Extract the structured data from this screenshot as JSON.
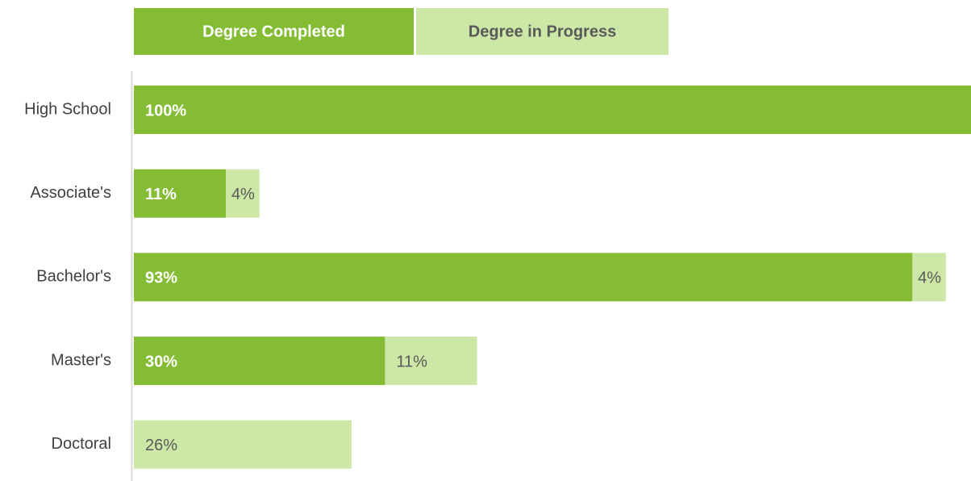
{
  "chart_data": {
    "type": "stacked-bar-horizontal",
    "categories": [
      "High School",
      "Associate's",
      "Bachelor's",
      "Master's",
      "Doctoral"
    ],
    "series": [
      {
        "name": "Degree Completed",
        "color": "#84bc34",
        "values": [
          100,
          11,
          93,
          30,
          null
        ],
        "value_labels": [
          "100%",
          "11%",
          "93%",
          "30%",
          null
        ]
      },
      {
        "name": "Degree in Progress",
        "color": "#cde8a6",
        "values": [
          null,
          4,
          4,
          11,
          26
        ],
        "value_labels": [
          null,
          "4%",
          "4%",
          "11%",
          "26%"
        ]
      }
    ],
    "xlim": [
      0,
      100
    ],
    "legend": "top"
  }
}
